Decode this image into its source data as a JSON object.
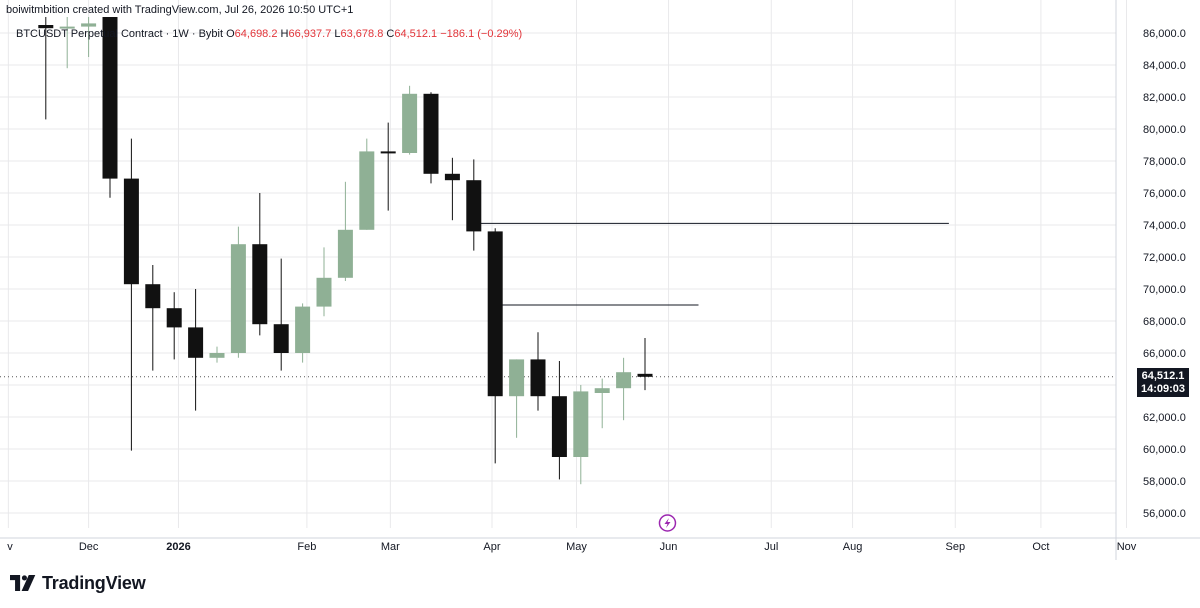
{
  "attribution": "boiwitmbition created with TradingView.com, Jul 26, 2026 10:50 UTC+1",
  "legend": {
    "symbol": "BTCUSDT Perpetual Contract · 1W · Bybit",
    "open_label": "O",
    "open": "64,698.2",
    "high_label": "H",
    "high": "66,937.7",
    "low_label": "L",
    "low": "63,678.8",
    "close_label": "C",
    "close": "64,512.1",
    "change": "−186.1 (−0.29%)"
  },
  "brand": {
    "name": "TradingView"
  },
  "current_price": {
    "value": 64512.1,
    "label": "64,512.1",
    "countdown": "14:09:03"
  },
  "colors": {
    "up": "#8fb095",
    "down": "#111111",
    "axis_text": "#131722",
    "grid": "#e9e9eb",
    "negative": "#e2353a"
  },
  "icons": {
    "alert": "lightning-icon",
    "logo": "tradingview-logo-icon"
  },
  "chart_data": {
    "type": "candlestick",
    "timeframe": "1W",
    "y_axis": {
      "ylim": [
        54800,
        87000
      ],
      "ticks": [
        56000,
        58000,
        60000,
        62000,
        64000,
        66000,
        68000,
        70000,
        72000,
        74000,
        76000,
        78000,
        80000,
        82000,
        84000,
        86000
      ],
      "tick_labels": [
        "56,000.0",
        "58,000.0",
        "60,000.0",
        "62,000.0",
        "64,000.0",
        "66,000.0",
        "68,000.0",
        "70,000.0",
        "72,000.0",
        "74,000.0",
        "76,000.0",
        "78,000.0",
        "80,000.0",
        "82,000.0",
        "84,000.0",
        "86,000.0"
      ]
    },
    "x_axis": {
      "labels": [
        "v",
        "Dec",
        "2026",
        "Feb",
        "Mar",
        "Apr",
        "May",
        "Jun",
        "Jul",
        "Aug",
        "Sep",
        "Oct",
        "Nov"
      ],
      "label_bar_index": [
        -1.75,
        2,
        6.2,
        12.2,
        16.1,
        20.85,
        24.8,
        29.1,
        33.9,
        37.7,
        42.5,
        46.5,
        50.5
      ]
    },
    "candles": [
      {
        "o": 86500,
        "h": 87000,
        "l": 80600,
        "c": 86300
      },
      {
        "o": 86300,
        "h": 87000,
        "l": 83800,
        "c": 86400
      },
      {
        "o": 86400,
        "h": 87000,
        "l": 84500,
        "c": 86600
      },
      {
        "o": 87000,
        "h": 87000,
        "l": 75700,
        "c": 76900
      },
      {
        "o": 76900,
        "h": 79400,
        "l": 59900,
        "c": 70300
      },
      {
        "o": 70300,
        "h": 71500,
        "l": 64900,
        "c": 68800
      },
      {
        "o": 68800,
        "h": 69800,
        "l": 65600,
        "c": 67600
      },
      {
        "o": 67600,
        "h": 70000,
        "l": 62400,
        "c": 65700
      },
      {
        "o": 65700,
        "h": 66400,
        "l": 65400,
        "c": 66000
      },
      {
        "o": 66000,
        "h": 73900,
        "l": 65700,
        "c": 72800
      },
      {
        "o": 72800,
        "h": 76000,
        "l": 67100,
        "c": 67800
      },
      {
        "o": 67800,
        "h": 71900,
        "l": 64900,
        "c": 66000
      },
      {
        "o": 66000,
        "h": 69100,
        "l": 65400,
        "c": 68900
      },
      {
        "o": 68900,
        "h": 72600,
        "l": 68300,
        "c": 70700
      },
      {
        "o": 70700,
        "h": 76700,
        "l": 70500,
        "c": 73700
      },
      {
        "o": 73700,
        "h": 79400,
        "l": 73700,
        "c": 78600
      },
      {
        "o": 78600,
        "h": 80400,
        "l": 74900,
        "c": 78500
      },
      {
        "o": 78500,
        "h": 82700,
        "l": 78400,
        "c": 82200
      },
      {
        "o": 82200,
        "h": 82300,
        "l": 76600,
        "c": 77200
      },
      {
        "o": 77200,
        "h": 78200,
        "l": 74300,
        "c": 76800
      },
      {
        "o": 76800,
        "h": 78100,
        "l": 72400,
        "c": 73600
      },
      {
        "o": 73600,
        "h": 73800,
        "l": 59100,
        "c": 63300
      },
      {
        "o": 63300,
        "h": 65600,
        "l": 60700,
        "c": 65600
      },
      {
        "o": 65600,
        "h": 67300,
        "l": 62400,
        "c": 63300
      },
      {
        "o": 63300,
        "h": 65500,
        "l": 58100,
        "c": 59500
      },
      {
        "o": 59500,
        "h": 64000,
        "l": 57800,
        "c": 63600
      },
      {
        "o": 63500,
        "h": 64400,
        "l": 61300,
        "c": 63800
      },
      {
        "o": 63800,
        "h": 65700,
        "l": 61800,
        "c": 64800
      },
      {
        "o": 64698.2,
        "h": 66937.7,
        "l": 63678.8,
        "c": 64512.1
      }
    ],
    "levels": [
      {
        "price": 74100,
        "from_index": 20,
        "to_bar_index": 42.2
      },
      {
        "price": 69000,
        "from_index": 21,
        "to_bar_index": 30.5
      }
    ],
    "alert_marker_bar_index": 29.05
  }
}
